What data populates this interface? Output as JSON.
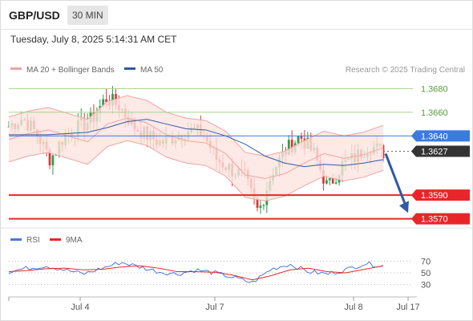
{
  "header": {
    "symbol": "GBP/USD",
    "timeframe": "30 MIN"
  },
  "datetime": "Tuesday, July 8, 2025 5:14:31 AM CET",
  "colors": {
    "up": "#2f9a4a",
    "down": "#d93a3a",
    "bb": "#f0a4a4",
    "bb_fill": "#fde3e0",
    "ma50": "#2f5aa3",
    "resistance": "#a6d38a",
    "support": "#e8262a",
    "pivot": "#3b7be0",
    "last": "#333333",
    "arrow": "#2f5aa3",
    "rsi": "#4a78d8",
    "rsi_ma": "#e8262a"
  },
  "legend": [
    {
      "label": "MA 20 + Bollinger Bands",
      "color": "#f0a4a4"
    },
    {
      "label": "MA 50",
      "color": "#2f5aa3"
    }
  ],
  "copyright": "Research © 2025 Trading Central",
  "rsi_legend": [
    {
      "label": "RSI",
      "color": "#4a78d8"
    },
    {
      "label": "9MA",
      "color": "#e8262a"
    }
  ],
  "levels": [
    {
      "value": 1.368,
      "label": "1.3680",
      "kind": "resistance"
    },
    {
      "value": 1.366,
      "label": "1.3660",
      "kind": "resistance"
    },
    {
      "value": 1.364,
      "label": "1.3640",
      "kind": "pivot"
    },
    {
      "value": 1.3627,
      "label": "1.3627",
      "kind": "last"
    },
    {
      "value": 1.359,
      "label": "1.3590",
      "kind": "support"
    },
    {
      "value": 1.357,
      "label": "1.3570",
      "kind": "support"
    }
  ],
  "chart_data": {
    "type": "candlestick",
    "ylim": [
      1.3567,
      1.3687
    ],
    "x_ticks": [
      "Jul 4",
      "Jul 7",
      "Jul 8",
      "Jul 17"
    ],
    "forecast_arrow": {
      "from": 1.3625,
      "to": 1.3575
    },
    "series": [
      {
        "name": "MA 20",
        "values": [
          1.3637,
          1.3642,
          1.3645,
          1.364,
          1.3635,
          1.365,
          1.3655,
          1.3651,
          1.3641,
          1.3636,
          1.3634,
          1.3625,
          1.3607,
          1.3604,
          1.3608,
          1.3617,
          1.3625,
          1.3621,
          1.3624,
          1.363
        ]
      },
      {
        "name": "MA 50",
        "values": [
          1.3641,
          1.3641,
          1.3641,
          1.3642,
          1.3643,
          1.3647,
          1.3652,
          1.3654,
          1.365,
          1.3646,
          1.3645,
          1.364,
          1.3633,
          1.3623,
          1.3617,
          1.3614,
          1.3616,
          1.3615,
          1.3617,
          1.362
        ]
      }
    ],
    "rsi": {
      "ylim": [
        20,
        80
      ],
      "ticks": [
        70,
        50,
        30
      ],
      "rsi": [
        52,
        58,
        62,
        55,
        48,
        58,
        68,
        60,
        52,
        48,
        55,
        50,
        42,
        33,
        56,
        65,
        52,
        48,
        55,
        66,
        62
      ],
      "ma9": [
        52,
        54,
        57,
        58,
        55,
        56,
        60,
        62,
        58,
        52,
        52,
        51,
        46,
        38,
        45,
        55,
        58,
        52,
        50,
        56,
        62
      ]
    }
  }
}
